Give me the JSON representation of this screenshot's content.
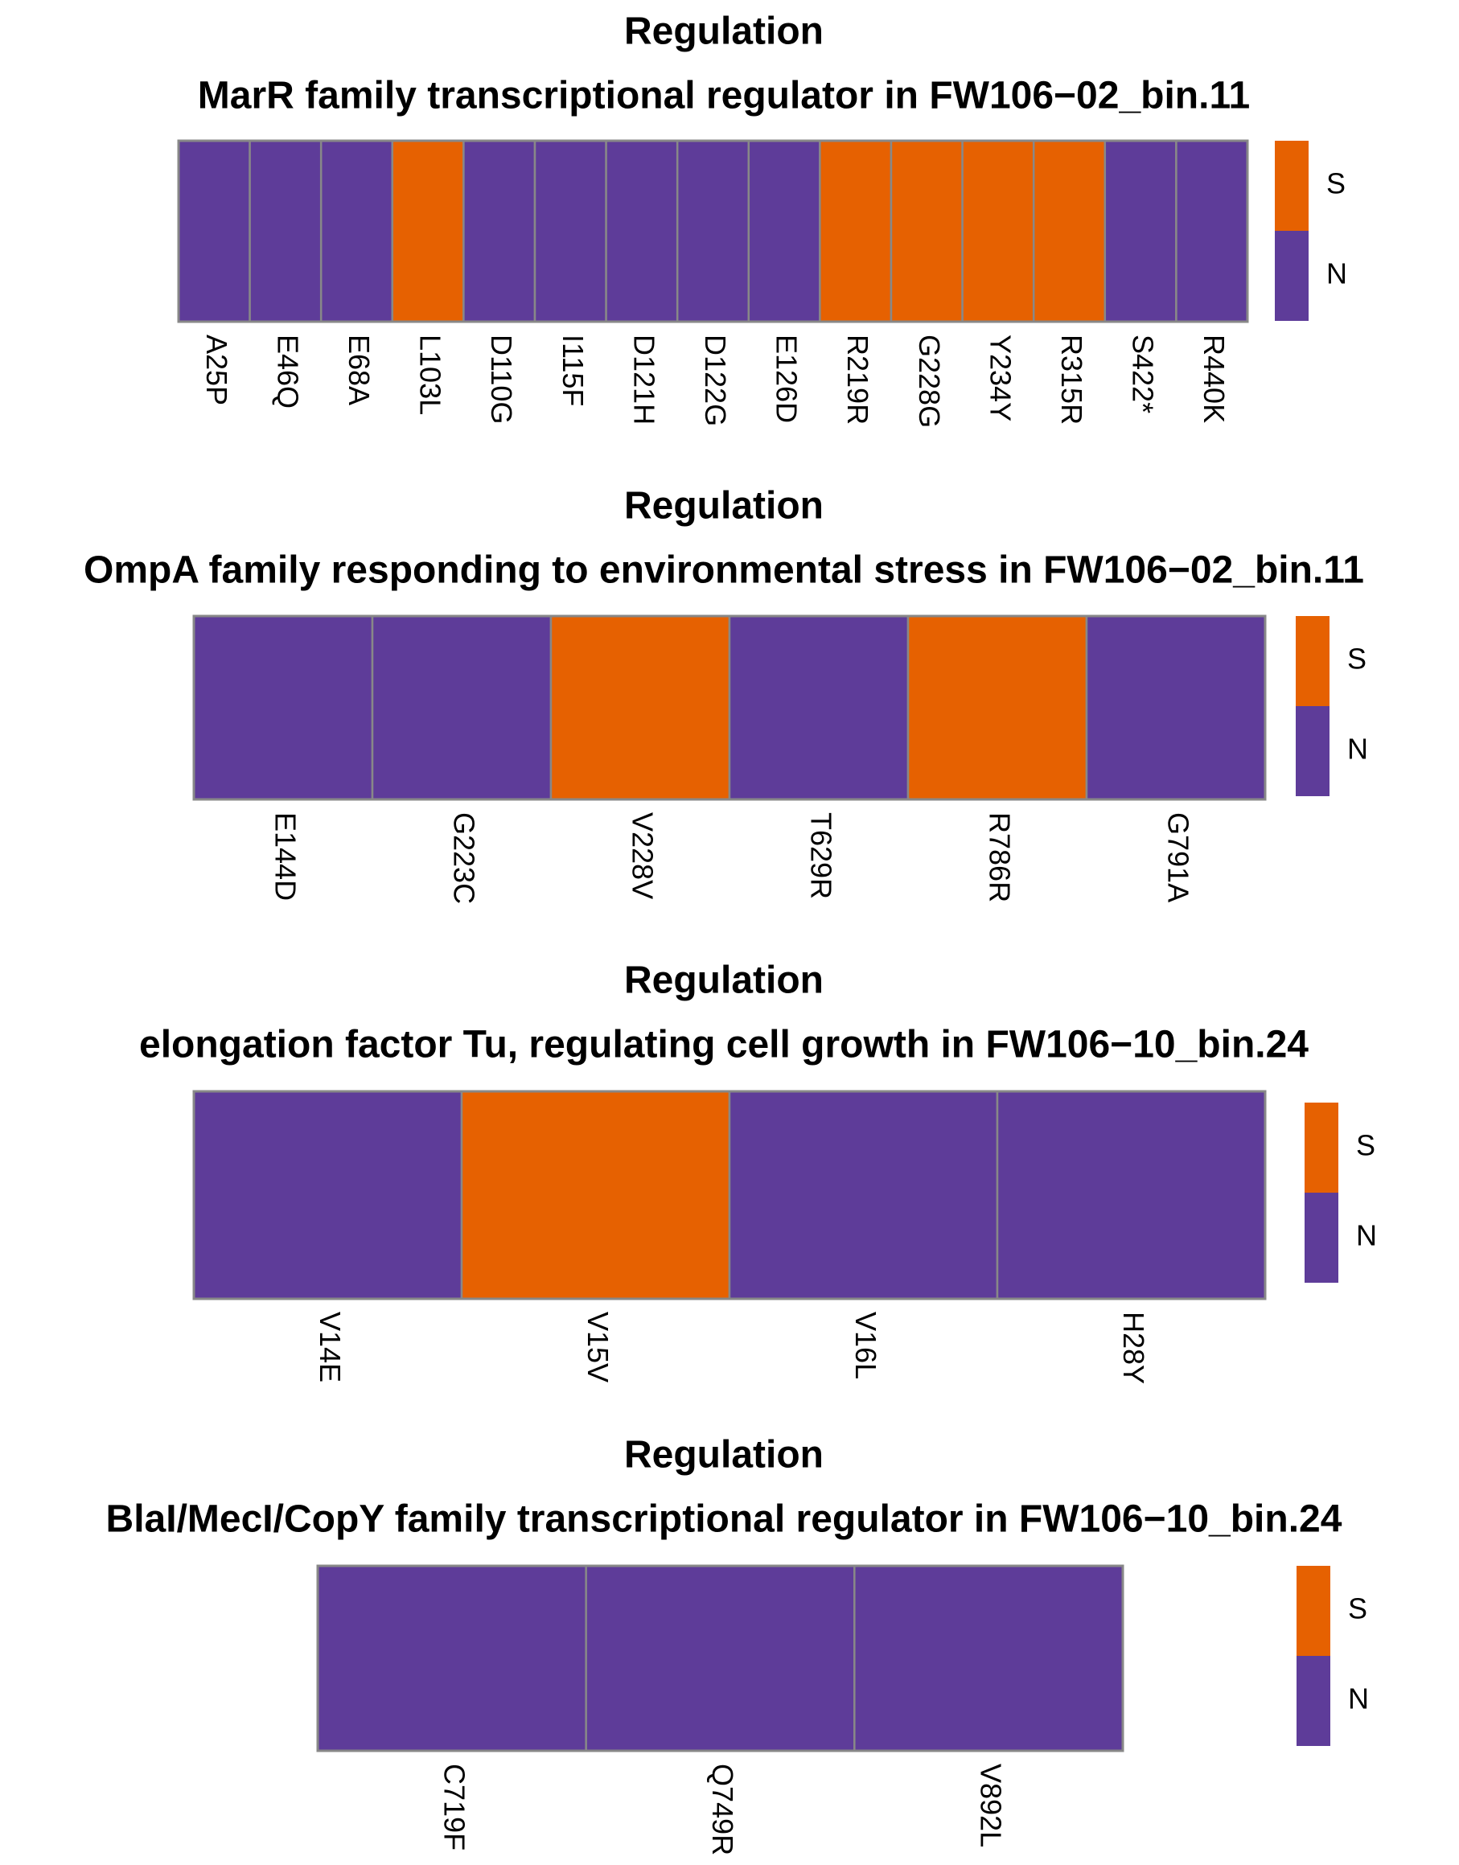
{
  "colors": {
    "S": "#E66101",
    "N": "#5E3C99",
    "border": "#888888"
  },
  "legend": {
    "levels": [
      "S",
      "N"
    ]
  },
  "chart_data": [
    {
      "type": "heatmap",
      "title": "Regulation",
      "subtitle": "MarR family transcriptional regulator in FW106−02_bin.11",
      "categories": [
        "A25P",
        "E46Q",
        "E68A",
        "L103L",
        "D110G",
        "I115F",
        "D121H",
        "D122G",
        "E126D",
        "R219R",
        "G228G",
        "Y234Y",
        "R315R",
        "S422*",
        "R440K"
      ],
      "values": [
        "N",
        "N",
        "N",
        "S",
        "N",
        "N",
        "N",
        "N",
        "N",
        "S",
        "S",
        "S",
        "S",
        "N",
        "N"
      ],
      "legend": [
        "S",
        "N"
      ]
    },
    {
      "type": "heatmap",
      "title": "Regulation",
      "subtitle": "OmpA family responding to environmental stress in FW106−02_bin.11",
      "categories": [
        "E144D",
        "G223C",
        "V228V",
        "T629R",
        "R786R",
        "G791A"
      ],
      "values": [
        "N",
        "N",
        "S",
        "N",
        "S",
        "N"
      ],
      "legend": [
        "S",
        "N"
      ]
    },
    {
      "type": "heatmap",
      "title": "Regulation",
      "subtitle": "elongation factor Tu, regulating cell growth in  FW106−10_bin.24",
      "categories": [
        "V14E",
        "V15V",
        "V16L",
        "H28Y"
      ],
      "values": [
        "N",
        "S",
        "N",
        "N"
      ],
      "legend": [
        "S",
        "N"
      ]
    },
    {
      "type": "heatmap",
      "title": "Regulation",
      "subtitle": "BlaI/MecI/CopY family transcriptional regulator in  FW106−10_bin.24",
      "categories": [
        "C719F",
        "Q749R",
        "V892L"
      ],
      "values": [
        "N",
        "N",
        "N"
      ],
      "legend": [
        "S",
        "N"
      ]
    }
  ]
}
